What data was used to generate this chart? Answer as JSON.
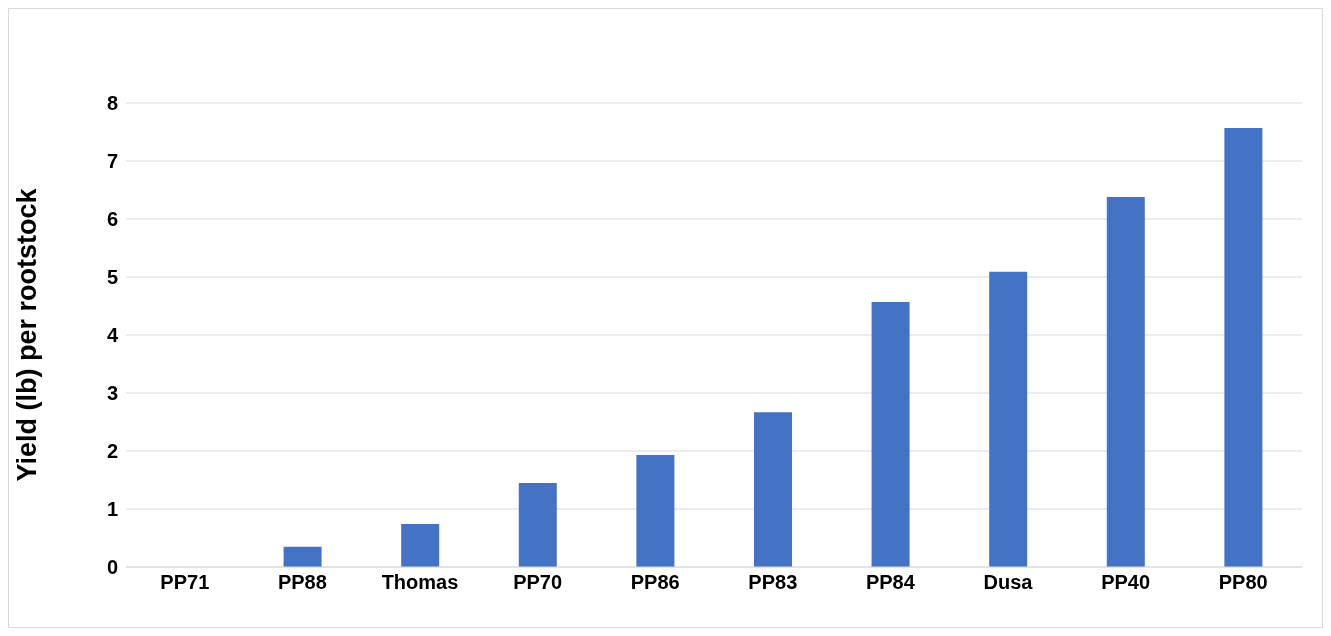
{
  "chart_data": {
    "type": "bar",
    "ylabel": "Yield (lb) per rootstock",
    "categories": [
      "PP71",
      "PP88",
      "Thomas",
      "PP70",
      "PP86",
      "PP83",
      "PP84",
      "Dusa",
      "PP40",
      "PP80"
    ],
    "values": [
      0,
      0.35,
      0.74,
      1.45,
      1.93,
      2.67,
      4.57,
      5.09,
      6.38,
      7.57
    ],
    "color": "#4472c4",
    "ylim": [
      0,
      8
    ],
    "yticks": [
      0,
      1,
      2,
      3,
      4,
      5,
      6,
      7,
      8
    ],
    "grid": "y"
  }
}
